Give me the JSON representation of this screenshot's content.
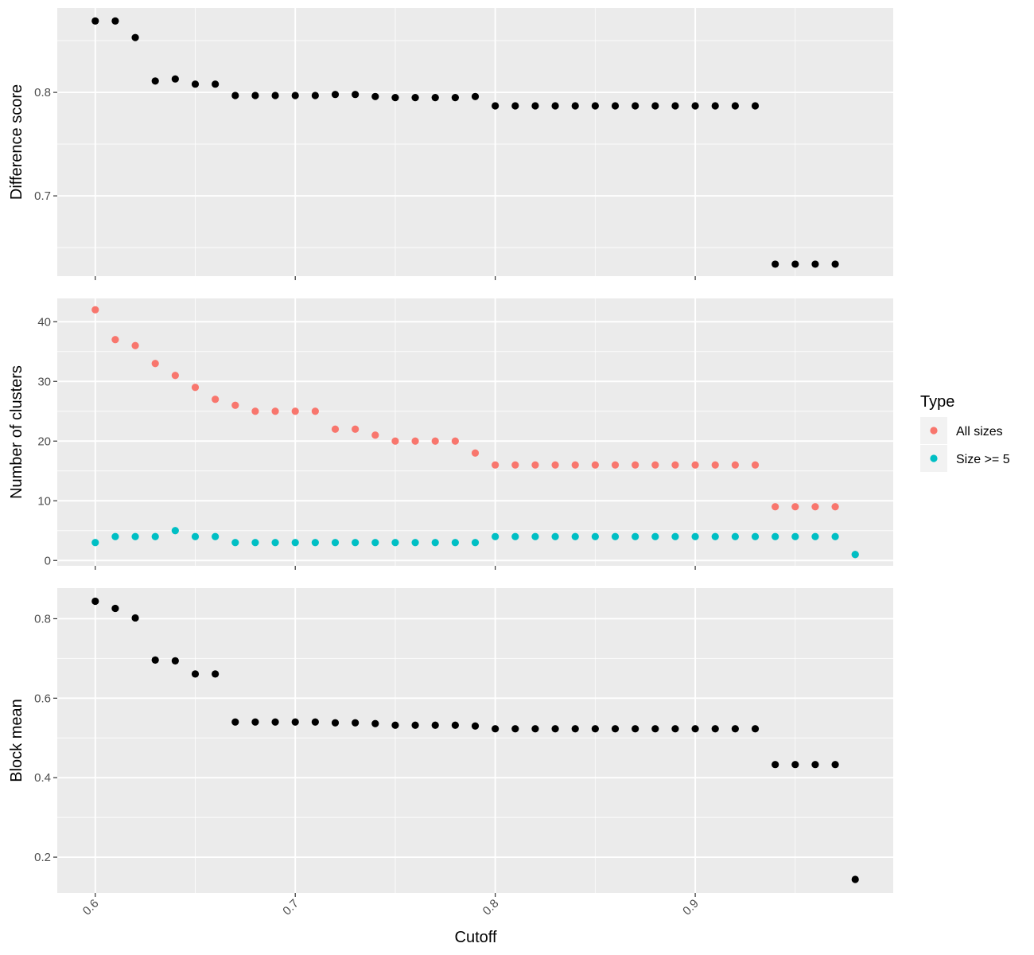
{
  "chart_data": {
    "type": "scatter",
    "xlabel": "Cutoff",
    "x_ticks": [
      "0.6",
      "0.7",
      "0.8",
      "0.9"
    ],
    "xlim": [
      0.581,
      0.999
    ],
    "legend": {
      "title": "Type",
      "placement": "right",
      "entries": [
        {
          "label": "All sizes",
          "color": "#F8766D"
        },
        {
          "label": "Size >= 5",
          "color": "#00BFC4"
        }
      ]
    },
    "panels": [
      {
        "ylabel": "Difference score",
        "ylim": [
          0.6224,
          0.8816
        ],
        "y_ticks": [
          "0.7",
          "0.8"
        ],
        "series": [
          {
            "color": "#000000",
            "x": [
              0.6,
              0.61,
              0.62,
              0.63,
              0.64,
              0.65,
              0.66,
              0.67,
              0.68,
              0.69,
              0.7,
              0.71,
              0.72,
              0.73,
              0.74,
              0.75,
              0.76,
              0.77,
              0.78,
              0.79,
              0.8,
              0.81,
              0.82,
              0.83,
              0.84,
              0.85,
              0.86,
              0.87,
              0.88,
              0.89,
              0.9,
              0.91,
              0.92,
              0.93,
              0.94,
              0.95,
              0.96,
              0.97
            ],
            "y": [
              0.869,
              0.869,
              0.853,
              0.811,
              0.813,
              0.808,
              0.808,
              0.797,
              0.797,
              0.797,
              0.797,
              0.797,
              0.798,
              0.798,
              0.796,
              0.795,
              0.795,
              0.795,
              0.795,
              0.796,
              0.787,
              0.787,
              0.787,
              0.787,
              0.787,
              0.787,
              0.787,
              0.787,
              0.787,
              0.787,
              0.787,
              0.787,
              0.787,
              0.787,
              0.634,
              0.634,
              0.634,
              0.634
            ]
          }
        ]
      },
      {
        "ylabel": "Number of clusters",
        "ylim": [
          -0.9,
          43.9
        ],
        "y_ticks": [
          "0",
          "10",
          "20",
          "30",
          "40"
        ],
        "series": [
          {
            "name": "All sizes",
            "color": "#F8766D",
            "x": [
              0.6,
              0.61,
              0.62,
              0.63,
              0.64,
              0.65,
              0.66,
              0.67,
              0.68,
              0.69,
              0.7,
              0.71,
              0.72,
              0.73,
              0.74,
              0.75,
              0.76,
              0.77,
              0.78,
              0.79,
              0.8,
              0.81,
              0.82,
              0.83,
              0.84,
              0.85,
              0.86,
              0.87,
              0.88,
              0.89,
              0.9,
              0.91,
              0.92,
              0.93,
              0.94,
              0.95,
              0.96,
              0.97,
              0.98
            ],
            "y": [
              42,
              37,
              36,
              33,
              31,
              29,
              27,
              26,
              25,
              25,
              25,
              25,
              22,
              22,
              21,
              20,
              20,
              20,
              20,
              18,
              16,
              16,
              16,
              16,
              16,
              16,
              16,
              16,
              16,
              16,
              16,
              16,
              16,
              16,
              9,
              9,
              9,
              9,
              1
            ]
          },
          {
            "name": "Size >= 5",
            "color": "#00BFC4",
            "x": [
              0.6,
              0.61,
              0.62,
              0.63,
              0.64,
              0.65,
              0.66,
              0.67,
              0.68,
              0.69,
              0.7,
              0.71,
              0.72,
              0.73,
              0.74,
              0.75,
              0.76,
              0.77,
              0.78,
              0.79,
              0.8,
              0.81,
              0.82,
              0.83,
              0.84,
              0.85,
              0.86,
              0.87,
              0.88,
              0.89,
              0.9,
              0.91,
              0.92,
              0.93,
              0.94,
              0.95,
              0.96,
              0.97,
              0.98
            ],
            "y": [
              3,
              4,
              4,
              4,
              5,
              4,
              4,
              3,
              3,
              3,
              3,
              3,
              3,
              3,
              3,
              3,
              3,
              3,
              3,
              3,
              4,
              4,
              4,
              4,
              4,
              4,
              4,
              4,
              4,
              4,
              4,
              4,
              4,
              4,
              4,
              4,
              4,
              4,
              1
            ]
          }
        ]
      },
      {
        "ylabel": "Block mean",
        "ylim": [
          0.11,
          0.877
        ],
        "y_ticks": [
          "0.2",
          "0.4",
          "0.6",
          "0.8"
        ],
        "series": [
          {
            "color": "#000000",
            "x": [
              0.6,
              0.61,
              0.62,
              0.63,
              0.64,
              0.65,
              0.66,
              0.67,
              0.68,
              0.69,
              0.7,
              0.71,
              0.72,
              0.73,
              0.74,
              0.75,
              0.76,
              0.77,
              0.78,
              0.79,
              0.8,
              0.81,
              0.82,
              0.83,
              0.84,
              0.85,
              0.86,
              0.87,
              0.88,
              0.89,
              0.9,
              0.91,
              0.92,
              0.93,
              0.94,
              0.95,
              0.96,
              0.97,
              0.98
            ],
            "y": [
              0.844,
              0.826,
              0.802,
              0.696,
              0.694,
              0.661,
              0.661,
              0.54,
              0.54,
              0.54,
              0.54,
              0.54,
              0.538,
              0.538,
              0.536,
              0.532,
              0.532,
              0.532,
              0.532,
              0.53,
              0.523,
              0.523,
              0.523,
              0.523,
              0.523,
              0.523,
              0.523,
              0.523,
              0.523,
              0.523,
              0.523,
              0.523,
              0.523,
              0.523,
              0.433,
              0.433,
              0.433,
              0.433,
              0.144
            ]
          }
        ]
      }
    ]
  }
}
